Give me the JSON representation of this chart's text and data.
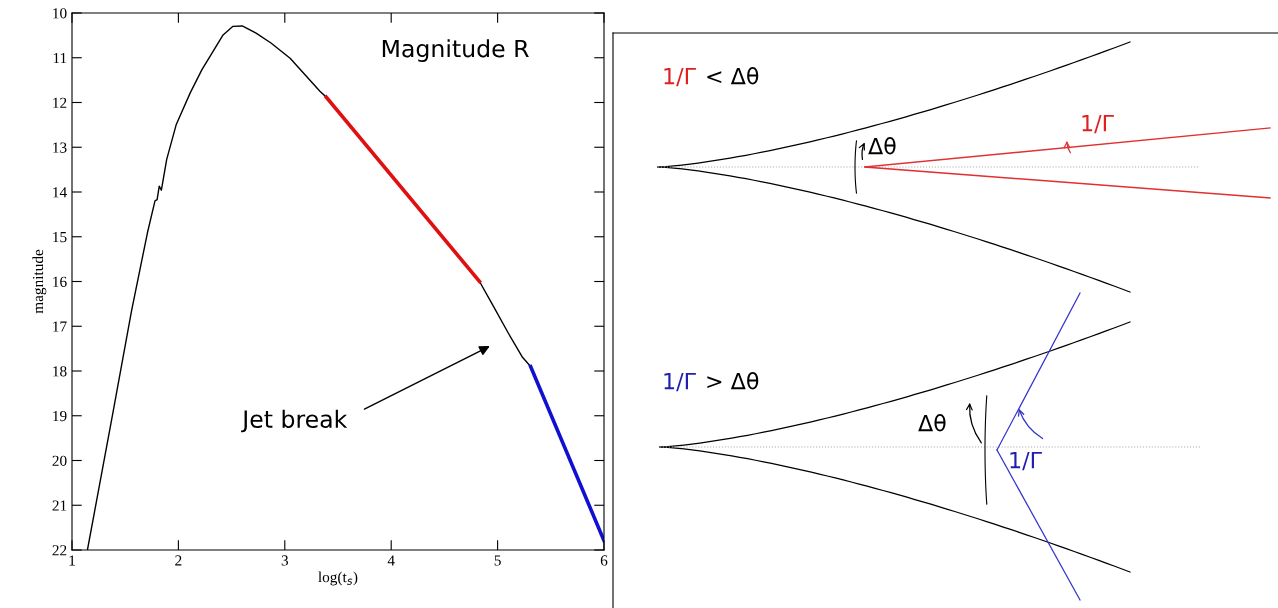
{
  "chart_data": [
    {
      "type": "line",
      "title": "Magnitude R",
      "xlabel": "log(t$_{s}$)",
      "ylabel": "magnitude",
      "xlim": [
        1,
        6
      ],
      "xticks": [
        1,
        2,
        3,
        4,
        5,
        6
      ],
      "ylim": [
        22,
        10
      ],
      "yticks": [
        10,
        11,
        12,
        13,
        14,
        15,
        16,
        17,
        18,
        19,
        20,
        21,
        22
      ],
      "grid": false,
      "legend": false,
      "marker": "none",
      "line_style": "solid",
      "series": [
        {
          "color": "#000000",
          "x": [
            1.145,
            1.38,
            1.56,
            1.71,
            1.78,
            1.8,
            1.82,
            1.84,
            1.89,
            1.98,
            2.11,
            2.22,
            2.33,
            2.42,
            2.51,
            2.6,
            2.73,
            2.87,
            3.05,
            3.33,
            3.39,
            4.83,
            4.96,
            5.1,
            5.23,
            5.31
          ],
          "values": [
            22,
            18.99,
            16.65,
            14.9,
            14.2,
            14.17,
            13.87,
            13.96,
            13.27,
            12.49,
            11.79,
            11.27,
            10.84,
            10.49,
            10.3,
            10.29,
            10.45,
            10.67,
            11.01,
            11.75,
            11.88,
            16.0,
            16.55,
            17.15,
            17.68,
            17.9
          ]
        },
        {
          "color": "#e01010",
          "x": [
            3.39,
            4.83
          ],
          "values": [
            11.88,
            16.0
          ]
        },
        {
          "color": "#1010d0",
          "x": [
            5.31,
            6.0
          ],
          "values": [
            17.9,
            21.79
          ]
        }
      ],
      "annotations": [
        "Jet break"
      ]
    },
    {
      "type": "other",
      "annotations": [
        "1/Γ",
        "< Δθ",
        "Δθ",
        "1/Γ",
        "1/Γ",
        "> Δθ",
        "Δθ",
        "1/Γ"
      ]
    }
  ]
}
